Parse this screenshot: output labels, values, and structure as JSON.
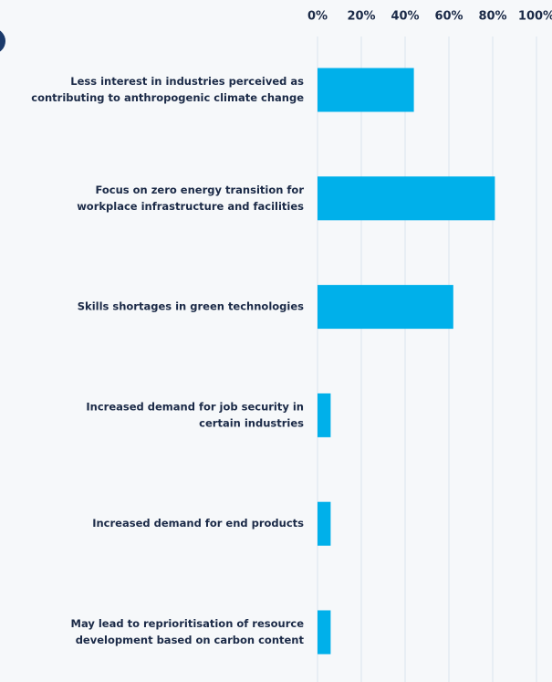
{
  "chart_data": {
    "type": "barh",
    "categories": [
      [
        "Less interest in industries perceived as",
        "contributing to anthropogenic climate change"
      ],
      [
        "Focus on zero energy transition for",
        "workplace infrastructure and facilities"
      ],
      [
        "Skills shortages in green technologies"
      ],
      [
        "Increased demand for job security in",
        "certain industries"
      ],
      [
        "Increased demand for end products"
      ],
      [
        "May lead to reprioritisation of resource",
        "development based on carbon content"
      ]
    ],
    "values": [
      44,
      81,
      62,
      6,
      6,
      6
    ],
    "color": "#00b0ea",
    "xlim": [
      0,
      100
    ],
    "xticks": [
      {
        "value": 0,
        "label": "0%"
      },
      {
        "value": 20,
        "label": "20%"
      },
      {
        "value": 40,
        "label": "40%"
      },
      {
        "value": 60,
        "label": "60%"
      },
      {
        "value": 80,
        "label": "80%"
      },
      {
        "value": 100,
        "label": "100%"
      }
    ],
    "grid": true
  }
}
